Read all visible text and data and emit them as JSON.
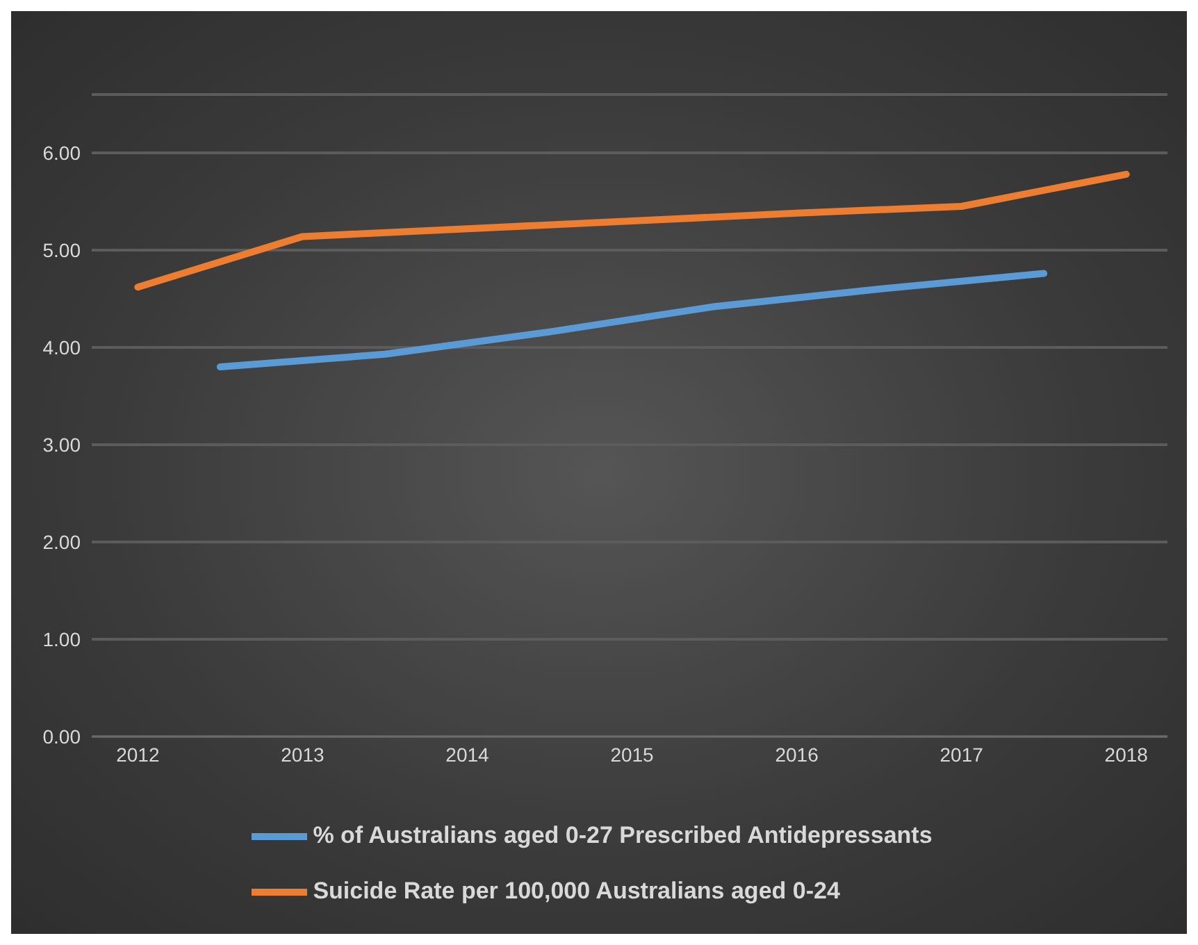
{
  "chart_data": {
    "type": "line",
    "xlim": [
      2011.72,
      2018.25
    ],
    "xticks": [
      2012,
      2013,
      2014,
      2015,
      2016,
      2017,
      2018
    ],
    "ylim": [
      0,
      6.6
    ],
    "yticks": [
      {
        "value": 0,
        "label": "0.00"
      },
      {
        "value": 1,
        "label": "1.00"
      },
      {
        "value": 2,
        "label": "2.00"
      },
      {
        "value": 3,
        "label": "3.00"
      },
      {
        "value": 4,
        "label": "4.00"
      },
      {
        "value": 5,
        "label": "5.00"
      },
      {
        "value": 6,
        "label": "6.00"
      }
    ],
    "grid": "y",
    "legend": "bottom",
    "marker": "none",
    "line_style": "solid",
    "series": [
      {
        "name": "% of Australians aged 0-27 Prescribed Antidepressants",
        "color": "#5b9bd5",
        "x": [
          2012.5,
          2013.5,
          2014.5,
          2015.5,
          2016.5,
          2017.5
        ],
        "values": [
          3.8,
          3.93,
          4.16,
          4.42,
          4.6,
          4.76
        ]
      },
      {
        "name": "Suicide Rate per 100,000 Australians aged 0-24",
        "color": "#ed7d31",
        "x": [
          2012,
          2013,
          2014,
          2015,
          2016,
          2017,
          2018
        ],
        "values": [
          4.62,
          5.14,
          5.22,
          5.3,
          5.38,
          5.45,
          5.78
        ]
      }
    ]
  }
}
